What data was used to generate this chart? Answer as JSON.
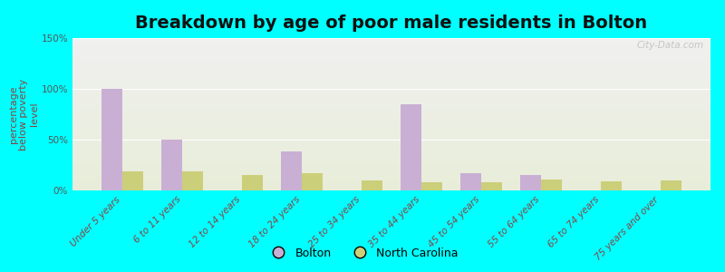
{
  "title": "Breakdown by age of poor male residents in Bolton",
  "ylabel": "percentage\nbelow poverty\nlevel",
  "categories": [
    "Under 5 years",
    "6 to 11 years",
    "12 to 14 years",
    "18 to 24 years",
    "25 to 34 years",
    "35 to 44 years",
    "45 to 54 years",
    "55 to 64 years",
    "65 to 74 years",
    "75 years and over"
  ],
  "bolton_values": [
    100,
    50,
    0,
    38,
    0,
    85,
    17,
    15,
    0,
    0
  ],
  "nc_values": [
    19,
    19,
    15,
    17,
    10,
    8,
    8,
    11,
    9,
    10
  ],
  "bolton_color": "#c9afd4",
  "nc_color": "#cccf7a",
  "ylim": [
    0,
    150
  ],
  "yticks": [
    0,
    50,
    100,
    150
  ],
  "ytick_labels": [
    "0%",
    "50%",
    "100%",
    "150%"
  ],
  "bg_color": "#00ffff",
  "bar_width": 0.35,
  "title_fontsize": 14,
  "axis_label_fontsize": 8,
  "tick_fontsize": 7.5,
  "legend_fontsize": 9,
  "watermark": "City-Data.com"
}
